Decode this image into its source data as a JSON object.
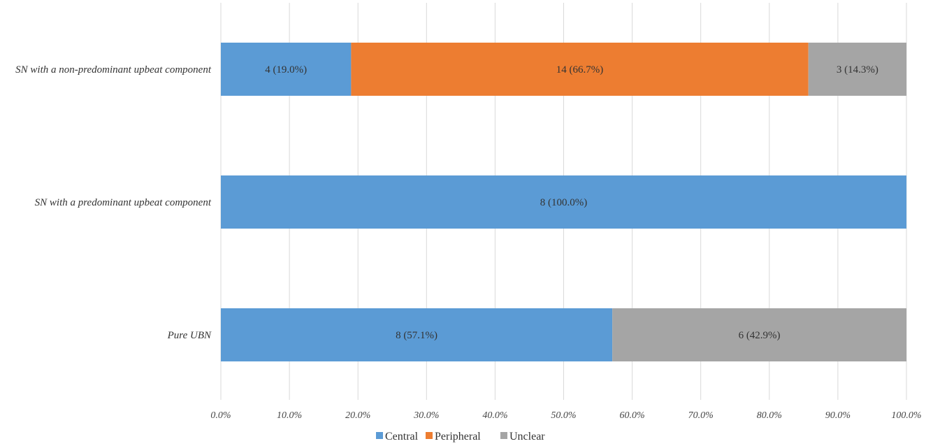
{
  "chart_data": {
    "type": "bar",
    "orientation": "horizontal",
    "stacked": "percent",
    "categories": [
      "SN with a non-predominant upbeat component",
      "SN with a predominant upbeat component",
      "Pure UBN"
    ],
    "series": [
      {
        "name": "Central",
        "color": "#5b9bd5",
        "values": [
          19.0,
          100.0,
          57.1
        ],
        "labels": [
          "4 (19.0%)",
          "8 (100.0%)",
          "8 (57.1%)"
        ]
      },
      {
        "name": "Peripheral",
        "color": "#ed7d31",
        "values": [
          66.7,
          0,
          0
        ],
        "labels": [
          "14 (66.7%)",
          "",
          ""
        ]
      },
      {
        "name": "Unclear",
        "color": "#a5a5a5",
        "values": [
          14.3,
          0,
          42.9
        ],
        "labels": [
          "3 (14.3%)",
          "",
          "6 (42.9%)"
        ]
      }
    ],
    "x_ticks": [
      "0.0%",
      "10.0%",
      "20.0%",
      "30.0%",
      "40.0%",
      "50.0%",
      "60.0%",
      "70.0%",
      "80.0%",
      "90.0%",
      "100.0%"
    ],
    "xlim": [
      0,
      100
    ],
    "grid": true,
    "legend": "bottom"
  }
}
